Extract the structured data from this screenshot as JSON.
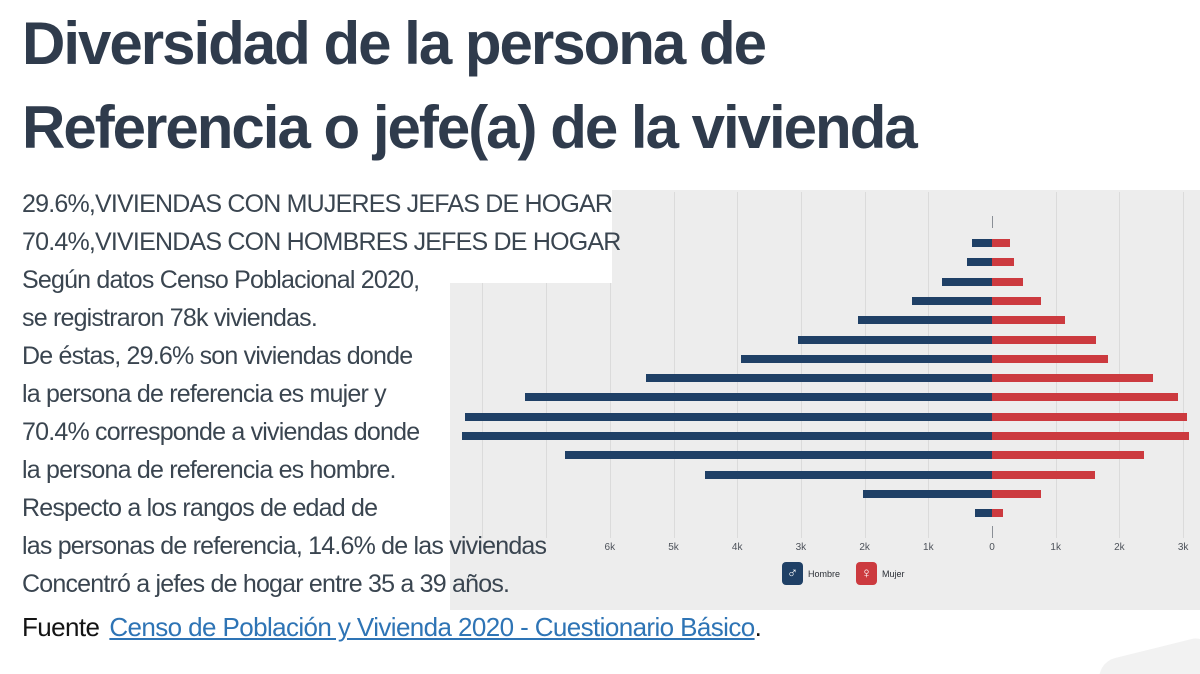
{
  "slide": {
    "title_lines": [
      "Diversidad de la persona de",
      "Referencia o jefe(a) de la vivienda"
    ],
    "body_lines": [
      "29.6%,VIVIENDAS CON MUJERES JEFAS DE HOGAR",
      "70.4%,VIVIENDAS CON HOMBRES JEFES DE HOGAR",
      "Según datos Censo Poblacional 2020,",
      "se registraron 78k viviendas.",
      "De éstas, 29.6% son viviendas donde",
      "la persona de referencia es mujer y",
      "70.4% corresponde a viviendas donde",
      "la persona de referencia es hombre.",
      "Respecto a los rangos de edad de",
      "las personas de referencia, 14.6% de las viviendas",
      "Concentró a jefes de hogar entre 35 a 39 años."
    ],
    "source": {
      "prefix": "Fuente",
      "link_text": "Censo de Población y Vivienda 2020 - Cuestionario Básico",
      "suffix": "."
    }
  },
  "colors": {
    "title": "#2F3B4C",
    "body_text": "#3A4550",
    "link": "#2E74B5",
    "panel_bg": "#EDEDED",
    "gridline": "#DBDBDB",
    "hombre": "#1F4066",
    "mujer": "#CC3A3F"
  },
  "chart_data": {
    "type": "bar",
    "subtype": "population-pyramid",
    "orientation": "horizontal",
    "unit": "viviendas (k = thousands)",
    "grid": true,
    "legend_position": "bottom-center",
    "row_labels_visible": false,
    "note": "15 age-group rows of household heads, oldest at top; row labels hidden behind the text block; peak row corresponds to ages 35-39 per slide text",
    "axis_tick_labels": [
      "6k",
      "5k",
      "4k",
      "3k",
      "2k",
      "1k",
      "0",
      "1k",
      "2k",
      "3k"
    ],
    "ticks": [
      {
        "label": "6k",
        "k": -6
      },
      {
        "label": "5k",
        "k": -5
      },
      {
        "label": "4k",
        "k": -4
      },
      {
        "label": "3k",
        "k": -3
      },
      {
        "label": "2k",
        "k": -2
      },
      {
        "label": "1k",
        "k": -1
      },
      {
        "label": "0",
        "k": 0
      },
      {
        "label": "1k",
        "k": 1
      },
      {
        "label": "2k",
        "k": 2
      },
      {
        "label": "3k",
        "k": 3
      }
    ],
    "gridline_ks": [
      -8,
      -7,
      -6,
      -5,
      -4,
      -3,
      -2,
      -1,
      1,
      2,
      3
    ],
    "series": [
      {
        "name": "Hombre",
        "side": "left",
        "color": "#1F4066",
        "icon_glyph": "♂",
        "values_k": [
          0.31,
          0.4,
          0.79,
          1.26,
          2.1,
          3.05,
          3.94,
          5.43,
          7.33,
          8.27,
          8.32,
          6.71,
          4.51,
          2.03,
          0.27
        ]
      },
      {
        "name": "Mujer",
        "side": "right",
        "color": "#CC3A3F",
        "icon_glyph": "♀",
        "values_k": [
          0.28,
          0.34,
          0.49,
          0.77,
          1.14,
          1.63,
          1.82,
          2.52,
          2.92,
          3.06,
          3.1,
          2.39,
          1.61,
          0.77,
          0.17
        ]
      }
    ]
  }
}
